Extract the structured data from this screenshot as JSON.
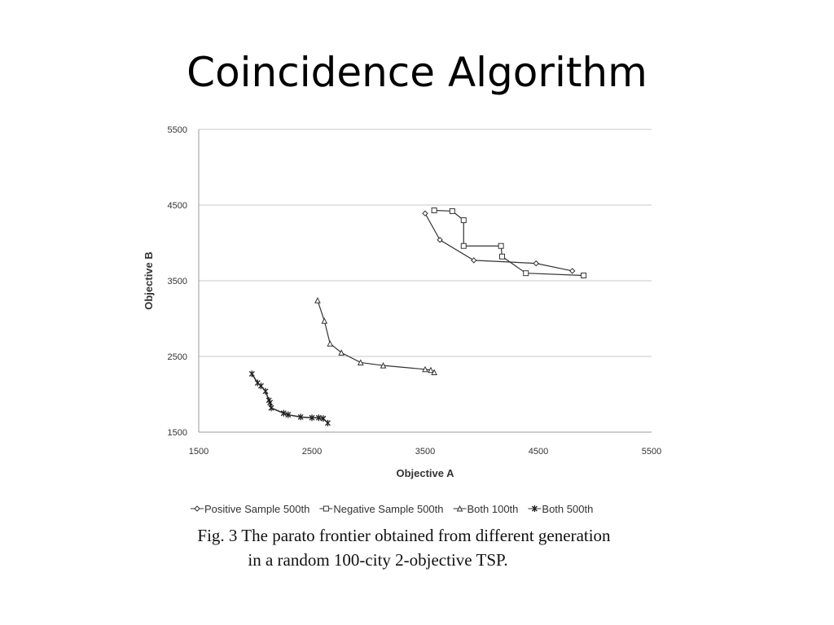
{
  "slide": {
    "title": "Coincidence Algorithm"
  },
  "caption": {
    "line1": "Fig. 3 The parato frontier obtained from different generation",
    "line2": "in a random 100-city 2-objective TSP."
  },
  "chart_data": {
    "type": "scatter",
    "xlabel": "Objective A",
    "ylabel": "Objective B",
    "xlim": [
      1500,
      5500
    ],
    "ylim": [
      1500,
      5500
    ],
    "x_ticks": [
      "1500",
      "2500",
      "3500",
      "4500",
      "5500"
    ],
    "y_ticks": [
      "1500",
      "2500",
      "3500",
      "4500",
      "5500"
    ],
    "grid": "horizontal",
    "legend_position": "bottom",
    "series": [
      {
        "name": "Positive Sample 500th",
        "marker": "diamond",
        "color": "#333333",
        "points": [
          [
            3500,
            4390
          ],
          [
            3630,
            4040
          ],
          [
            3930,
            3770
          ],
          [
            4480,
            3730
          ],
          [
            4800,
            3630
          ]
        ]
      },
      {
        "name": "Negative Sample 500th",
        "marker": "square",
        "color": "#333333",
        "points": [
          [
            3580,
            4430
          ],
          [
            3740,
            4420
          ],
          [
            3840,
            4300
          ],
          [
            3840,
            3960
          ],
          [
            4170,
            3960
          ],
          [
            4180,
            3820
          ],
          [
            4390,
            3600
          ],
          [
            4900,
            3570
          ]
        ]
      },
      {
        "name": "Both 100th",
        "marker": "triangle",
        "color": "#333333",
        "points": [
          [
            2550,
            3240
          ],
          [
            2610,
            2970
          ],
          [
            2660,
            2670
          ],
          [
            2760,
            2550
          ],
          [
            2930,
            2420
          ],
          [
            3130,
            2380
          ],
          [
            3500,
            2330
          ],
          [
            3550,
            2320
          ],
          [
            3580,
            2290
          ]
        ]
      },
      {
        "name": "Both 500th",
        "marker": "star",
        "color": "#333333",
        "points": [
          [
            1970,
            2270
          ],
          [
            2020,
            2150
          ],
          [
            2050,
            2110
          ],
          [
            2090,
            2040
          ],
          [
            2120,
            1920
          ],
          [
            2130,
            1890
          ],
          [
            2140,
            1820
          ],
          [
            2250,
            1750
          ],
          [
            2290,
            1730
          ],
          [
            2400,
            1700
          ],
          [
            2500,
            1690
          ],
          [
            2560,
            1690
          ],
          [
            2600,
            1680
          ],
          [
            2640,
            1620
          ]
        ]
      }
    ]
  }
}
